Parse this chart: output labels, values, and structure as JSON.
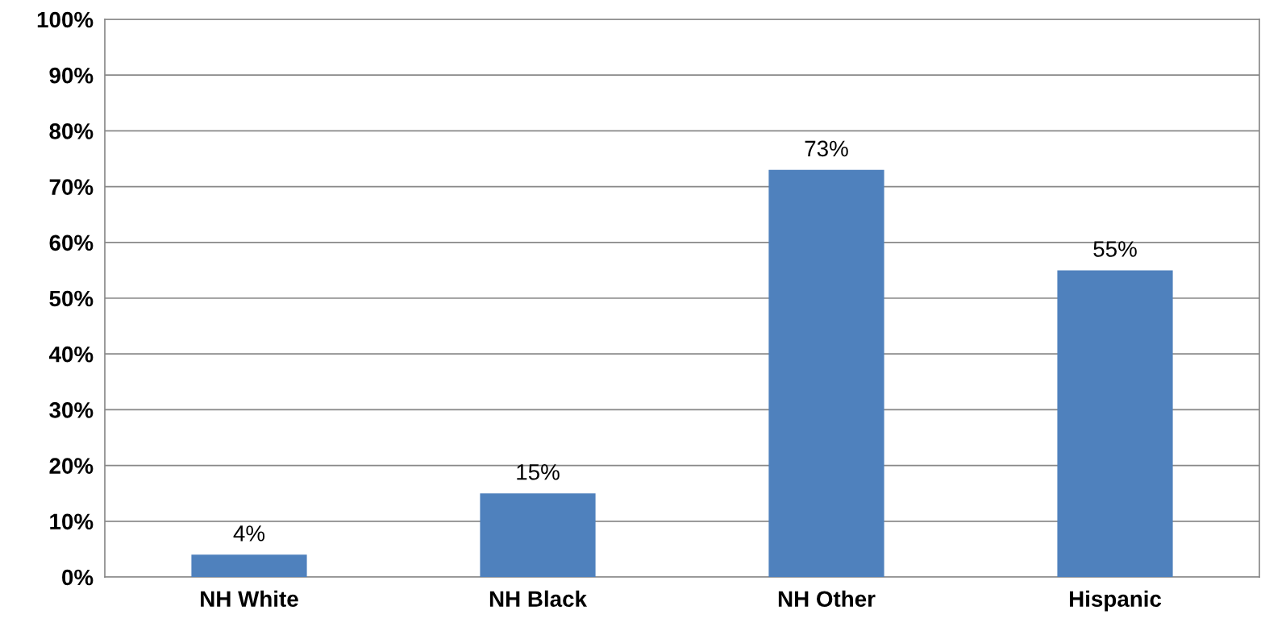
{
  "chart_data": {
    "type": "bar",
    "categories": [
      "NH White",
      "NH Black",
      "NH Other",
      "Hispanic"
    ],
    "values": [
      4,
      15,
      73,
      55
    ],
    "value_labels": [
      "4%",
      "15%",
      "73%",
      "55%"
    ],
    "color": "#4f81bd",
    "ylim": [
      0,
      100
    ],
    "yticks": [
      {
        "value": 0,
        "label": "0%"
      },
      {
        "value": 10,
        "label": "10%"
      },
      {
        "value": 20,
        "label": "20%"
      },
      {
        "value": 30,
        "label": "30%"
      },
      {
        "value": 40,
        "label": "40%"
      },
      {
        "value": 50,
        "label": "50%"
      },
      {
        "value": 60,
        "label": "60%"
      },
      {
        "value": 70,
        "label": "70%"
      },
      {
        "value": 80,
        "label": "80%"
      },
      {
        "value": 90,
        "label": "90%"
      },
      {
        "value": 100,
        "label": "100%"
      }
    ],
    "grid": "y"
  }
}
